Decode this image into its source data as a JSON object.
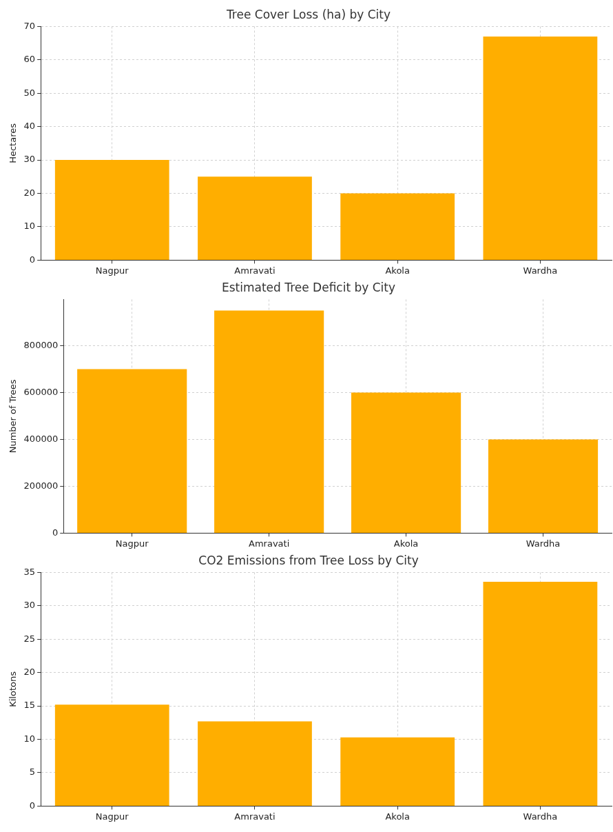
{
  "chart_data": [
    {
      "type": "bar",
      "title": "Tree Cover Loss (ha) by City",
      "ylabel": "Hectares",
      "categories": [
        "Nagpur",
        "Amravati",
        "Akola",
        "Wardha"
      ],
      "values": [
        30,
        25,
        20,
        67
      ],
      "color": "#ffae00",
      "ylim": [
        0,
        70
      ],
      "yticks": [
        0,
        10,
        20,
        30,
        40,
        50,
        60,
        70
      ],
      "grid": true
    },
    {
      "type": "bar",
      "title": "Estimated Tree Deficit by City",
      "ylabel": "Number of Trees",
      "categories": [
        "Nagpur",
        "Amravati",
        "Akola",
        "Wardha"
      ],
      "values": [
        700000,
        950000,
        600000,
        400000
      ],
      "color": "#ffae00",
      "ylim": [
        0,
        997500
      ],
      "yticks": [
        0,
        200000,
        400000,
        600000,
        800000
      ],
      "grid": true
    },
    {
      "type": "bar",
      "title": "CO2 Emissions from Tree Loss by City",
      "ylabel": "Kilotons",
      "categories": [
        "Nagpur",
        "Amravati",
        "Akola",
        "Wardha"
      ],
      "values": [
        15.2,
        12.7,
        10.3,
        33.6
      ],
      "color": "#ffae00",
      "ylim": [
        0,
        35
      ],
      "yticks": [
        0,
        5,
        10,
        15,
        20,
        25,
        30,
        35
      ],
      "grid": true
    }
  ]
}
